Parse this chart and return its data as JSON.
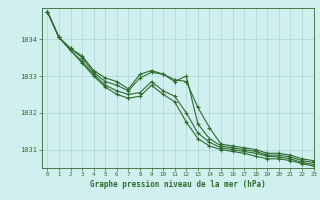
{
  "title": "Graphe pression niveau de la mer (hPa)",
  "bg_color": "#d0f0f0",
  "grid_color": "#b0d8d8",
  "line_color": "#2d6b2d",
  "xlim": [
    -0.5,
    23
  ],
  "ylim": [
    1030.5,
    1034.85
  ],
  "yticks": [
    1031,
    1032,
    1033,
    1034
  ],
  "xticks": [
    0,
    1,
    2,
    3,
    4,
    5,
    6,
    7,
    8,
    9,
    10,
    11,
    12,
    13,
    14,
    15,
    16,
    17,
    18,
    19,
    20,
    21,
    22,
    23
  ],
  "series": [
    [
      1034.75,
      1034.05,
      1033.75,
      1033.55,
      1033.15,
      1032.95,
      1032.85,
      1032.65,
      1033.05,
      1033.15,
      1033.05,
      1032.9,
      1032.85,
      1032.15,
      1031.6,
      1031.15,
      1031.1,
      1031.05,
      1031.0,
      1030.9,
      1030.9,
      1030.85,
      1030.75,
      1030.7
    ],
    [
      1034.75,
      1034.05,
      1033.75,
      1033.5,
      1033.1,
      1032.85,
      1032.75,
      1032.6,
      1032.95,
      1033.1,
      1033.05,
      1032.85,
      1033.0,
      1031.7,
      1031.3,
      1031.1,
      1031.05,
      1031.0,
      1030.95,
      1030.85,
      1030.85,
      1030.8,
      1030.7,
      1030.65
    ],
    [
      1034.75,
      1034.05,
      1033.7,
      1033.4,
      1033.05,
      1032.75,
      1032.6,
      1032.5,
      1032.55,
      1032.85,
      1032.6,
      1032.45,
      1032.0,
      1031.45,
      1031.2,
      1031.05,
      1031.0,
      1030.95,
      1030.9,
      1030.82,
      1030.8,
      1030.75,
      1030.65,
      1030.6
    ],
    [
      1034.75,
      1034.05,
      1033.7,
      1033.35,
      1033.0,
      1032.7,
      1032.5,
      1032.4,
      1032.45,
      1032.75,
      1032.5,
      1032.3,
      1031.75,
      1031.3,
      1031.1,
      1031.0,
      1030.95,
      1030.9,
      1030.82,
      1030.75,
      1030.75,
      1030.7,
      1030.62,
      1030.55
    ]
  ],
  "marker_indices": [
    0,
    1,
    2,
    3,
    4,
    5,
    6,
    7,
    8,
    9,
    10,
    11,
    12,
    13,
    14,
    15,
    16,
    17,
    18,
    19,
    20,
    21,
    22,
    23
  ]
}
